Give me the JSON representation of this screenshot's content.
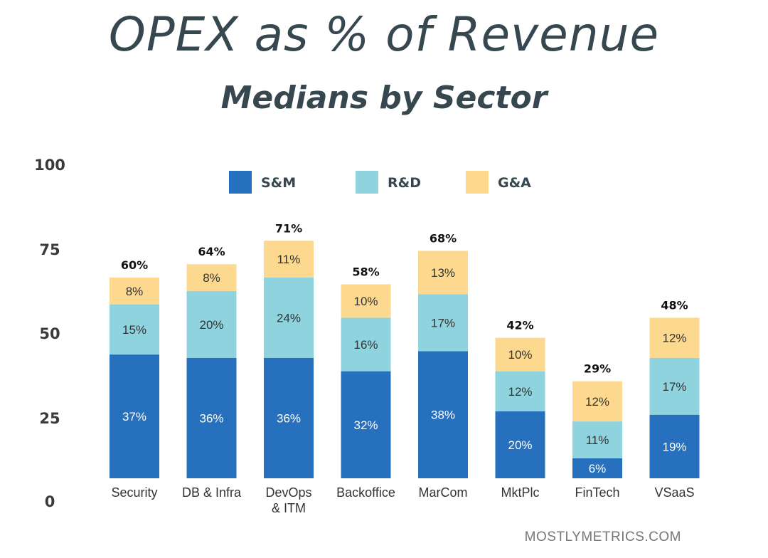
{
  "header": {
    "title": "OPEX as % of Revenue",
    "subtitle": "Medians by Sector"
  },
  "watermark": "MOSTLYMETRICS.COM",
  "chart_data": {
    "type": "bar",
    "stacked": true,
    "title": "OPEX as % of Revenue",
    "subtitle": "Medians by Sector",
    "xlabel": "",
    "ylabel": "",
    "ylim": [
      0,
      100
    ],
    "yticks": [
      0,
      25,
      50,
      75,
      100
    ],
    "grid": false,
    "legend_position": "top-center",
    "categories": [
      [
        "Security"
      ],
      [
        "DB & Infra"
      ],
      [
        "DevOps",
        "& ITM"
      ],
      [
        "Backoffice"
      ],
      [
        "MarCom"
      ],
      [
        "MktPlc"
      ],
      [
        "FinTech"
      ],
      [
        "VSaaS"
      ]
    ],
    "series": [
      {
        "name": "S&M",
        "color": "#2670bd",
        "label_color": "#ffffff",
        "values": [
          37,
          36,
          36,
          32,
          38,
          20,
          6,
          19
        ],
        "labels": [
          "37%",
          "36%",
          "36%",
          "32%",
          "38%",
          "20%",
          "6%",
          "19%"
        ]
      },
      {
        "name": "R&D",
        "color": "#8fd3df",
        "label_color": "#333333",
        "values": [
          15,
          20,
          24,
          16,
          17,
          12,
          11,
          17
        ],
        "labels": [
          "15%",
          "20%",
          "24%",
          "16%",
          "17%",
          "12%",
          "11%",
          "17%"
        ]
      },
      {
        "name": "G&A",
        "color": "#fcd98f",
        "label_color": "#333333",
        "values": [
          8,
          8,
          11,
          10,
          13,
          10,
          12,
          12
        ],
        "labels": [
          "8%",
          "8%",
          "11%",
          "10%",
          "13%",
          "10%",
          "12%",
          "12%"
        ]
      }
    ],
    "totals": [
      "60%",
      "64%",
      "71%",
      "58%",
      "68%",
      "42%",
      "29%",
      "48%"
    ]
  }
}
